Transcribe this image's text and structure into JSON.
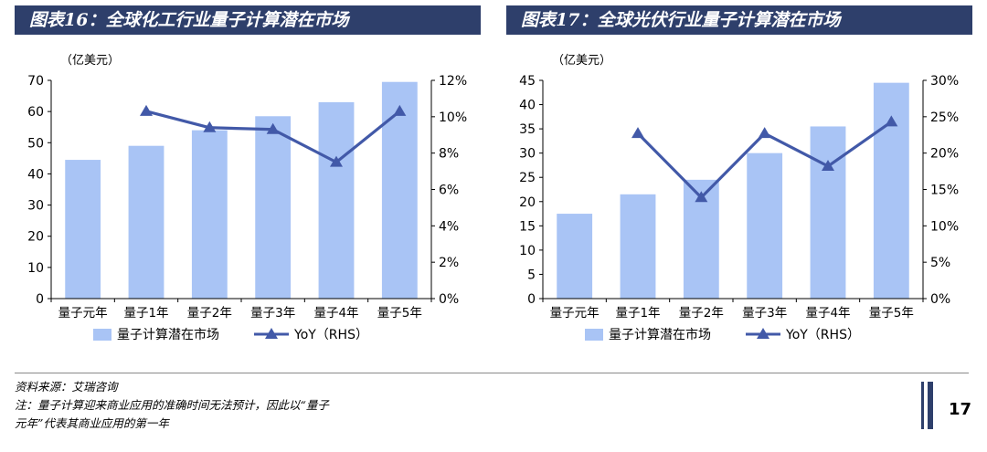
{
  "charts": [
    {
      "title": "图表16：全球化工行业量子计算潜在市场",
      "colors": {
        "bar": "#a9c4f5",
        "line": "#4259a8"
      }
    },
    {
      "title": "图表17：全球光伏行业量子计算潜在市场",
      "colors": {
        "bar": "#a9c4f5",
        "line": "#4259a8"
      }
    }
  ],
  "chart_data": [
    {
      "type": "bar",
      "categories": [
        "量子元年",
        "量子1年",
        "量子2年",
        "量子3年",
        "量子4年",
        "量子5年"
      ],
      "unit_label": "（亿美元）",
      "series": [
        {
          "name": "量子计算潜在市场",
          "type": "bar",
          "axis": "left",
          "values": [
            44.5,
            49,
            54,
            58.5,
            63,
            69.5
          ]
        },
        {
          "name": "YoY（RHS）",
          "type": "line",
          "axis": "right",
          "values": [
            null,
            10.3,
            9.4,
            9.3,
            7.5,
            10.3
          ]
        }
      ],
      "ylim": [
        0,
        70
      ],
      "yticks": [
        0,
        10,
        20,
        30,
        40,
        50,
        60,
        70
      ],
      "y2lim": [
        0,
        12
      ],
      "y2ticks": [
        "0%",
        "2%",
        "4%",
        "6%",
        "8%",
        "10%",
        "12%"
      ],
      "grid": false,
      "legend_position": "bottom"
    },
    {
      "type": "bar",
      "categories": [
        "量子元年",
        "量子1年",
        "量子2年",
        "量子3年",
        "量子4年",
        "量子5年"
      ],
      "unit_label": "（亿美元）",
      "series": [
        {
          "name": "量子计算潜在市场",
          "type": "bar",
          "axis": "left",
          "values": [
            17.5,
            21.5,
            24.5,
            30,
            35.5,
            44.5
          ]
        },
        {
          "name": "YoY（RHS）",
          "type": "line",
          "axis": "right",
          "values": [
            null,
            22.7,
            13.9,
            22.7,
            18.2,
            24.3
          ]
        }
      ],
      "ylim": [
        0,
        45
      ],
      "yticks": [
        0,
        5,
        10,
        15,
        20,
        25,
        30,
        35,
        40,
        45
      ],
      "y2lim": [
        0,
        30
      ],
      "y2ticks": [
        "0%",
        "5%",
        "10%",
        "15%",
        "20%",
        "25%",
        "30%"
      ],
      "grid": false,
      "legend_position": "bottom"
    }
  ],
  "footer": {
    "source": "资料来源：艾瑞咨询",
    "note_line1": "注：量子计算迎来商业应用的准确时间无法预计，因此以“量子",
    "note_line2": "元年”代表其商业应用的第一年"
  },
  "page_number": "17"
}
